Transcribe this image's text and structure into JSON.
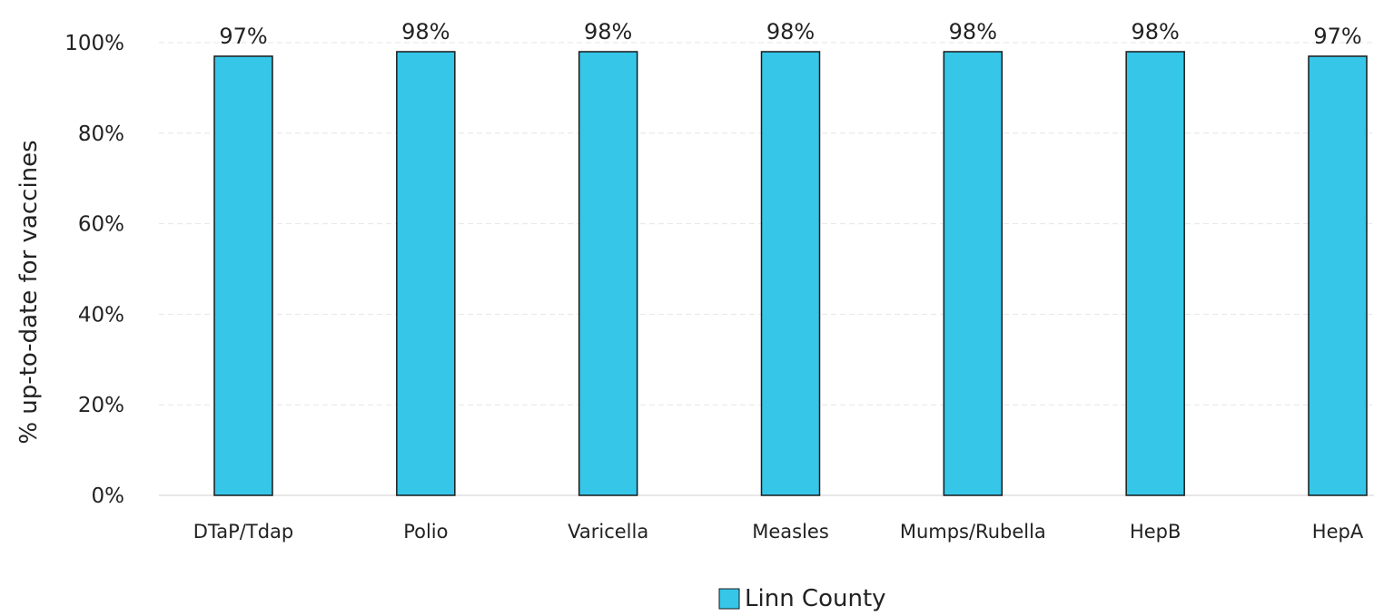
{
  "chart_data": {
    "type": "bar",
    "categories": [
      "DTaP/Tdap",
      "Polio",
      "Varicella",
      "Measles",
      "Mumps/Rubella",
      "HepB",
      "HepA"
    ],
    "series": [
      {
        "name": "Linn County",
        "values": [
          97,
          98,
          98,
          98,
          98,
          98,
          97
        ],
        "data_labels": [
          "97%",
          "98%",
          "98%",
          "98%",
          "98%",
          "98%",
          "97%"
        ],
        "color": "#35c6e8"
      }
    ],
    "title": "",
    "xlabel": "",
    "ylabel": "% up-to-date for vaccines",
    "ylim": [
      0,
      100
    ],
    "yticks": [
      0,
      20,
      40,
      60,
      80,
      100
    ],
    "ytick_labels": [
      "0%",
      "20%",
      "40%",
      "60%",
      "80%",
      "100%"
    ],
    "grid": true,
    "legend": "bottom-center",
    "bar_edge_color": "#1a1a1a",
    "grid_color": "#e6e6e6"
  }
}
